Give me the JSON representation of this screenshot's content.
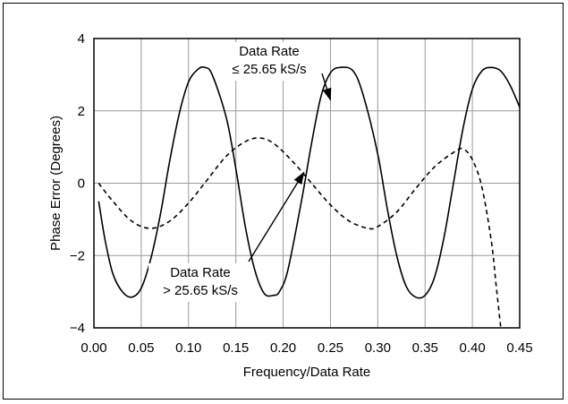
{
  "chart_data": {
    "type": "line",
    "title": "",
    "xlabel": "Frequency/Data Rate",
    "ylabel": "Phase Error (Degrees)",
    "xlim": [
      0.0,
      0.45
    ],
    "ylim": [
      -4,
      4
    ],
    "x_ticks": [
      "0.00",
      "0.05",
      "0.10",
      "0.15",
      "0.20",
      "0.25",
      "0.30",
      "0.35",
      "0.40",
      "0.45"
    ],
    "y_ticks": [
      "4",
      "2",
      "0",
      "−2",
      "−4"
    ],
    "grid": true,
    "legend": "none (series identified by on-plot annotations with arrows)",
    "series": [
      {
        "name": "Data Rate ≤ 25.65 kS/s",
        "style": "solid",
        "x": [
          0.005,
          0.012,
          0.02,
          0.03,
          0.04,
          0.05,
          0.06,
          0.07,
          0.08,
          0.09,
          0.1,
          0.11,
          0.117,
          0.125,
          0.14,
          0.15,
          0.16,
          0.17,
          0.18,
          0.19,
          0.196,
          0.205,
          0.22,
          0.23,
          0.24,
          0.25,
          0.26,
          0.274,
          0.285,
          0.3,
          0.31,
          0.32,
          0.33,
          0.34,
          0.35,
          0.36,
          0.37,
          0.38,
          0.39,
          0.4,
          0.41,
          0.42,
          0.43,
          0.44,
          0.45
        ],
        "y": [
          -0.5,
          -1.6,
          -2.5,
          -3.0,
          -3.15,
          -2.9,
          -2.1,
          -0.9,
          0.6,
          1.9,
          2.8,
          3.15,
          3.2,
          3.0,
          1.8,
          0.4,
          -1.2,
          -2.4,
          -3.05,
          -3.1,
          -3.0,
          -2.4,
          -0.4,
          1.1,
          2.4,
          3.05,
          3.2,
          3.1,
          2.4,
          0.8,
          -0.7,
          -2.0,
          -2.85,
          -3.15,
          -3.1,
          -2.6,
          -1.5,
          0.0,
          1.5,
          2.6,
          3.1,
          3.2,
          3.1,
          2.7,
          2.1
        ]
      },
      {
        "name": "Data Rate > 25.65 kS/s",
        "style": "dashed",
        "x": [
          0.005,
          0.02,
          0.04,
          0.06,
          0.08,
          0.1,
          0.12,
          0.14,
          0.16,
          0.175,
          0.19,
          0.21,
          0.23,
          0.25,
          0.27,
          0.29,
          0.3,
          0.32,
          0.34,
          0.36,
          0.38,
          0.39,
          0.4,
          0.41,
          0.42,
          0.425,
          0.43
        ],
        "y": [
          0.0,
          -0.5,
          -1.05,
          -1.25,
          -1.05,
          -0.55,
          0.1,
          0.75,
          1.15,
          1.25,
          1.1,
          0.6,
          0.0,
          -0.6,
          -1.05,
          -1.25,
          -1.2,
          -0.8,
          -0.15,
          0.45,
          0.85,
          0.95,
          0.65,
          -0.1,
          -1.6,
          -2.8,
          -4.0
        ]
      }
    ],
    "annotations": [
      {
        "lines": [
          "Data Rate",
          "≤ 25.65 kS/s"
        ],
        "arrow_to": [
          0.25,
          2.3
        ]
      },
      {
        "lines": [
          "Data Rate",
          "> 25.65 kS/s"
        ],
        "arrow_to": [
          0.222,
          0.3
        ]
      }
    ]
  }
}
